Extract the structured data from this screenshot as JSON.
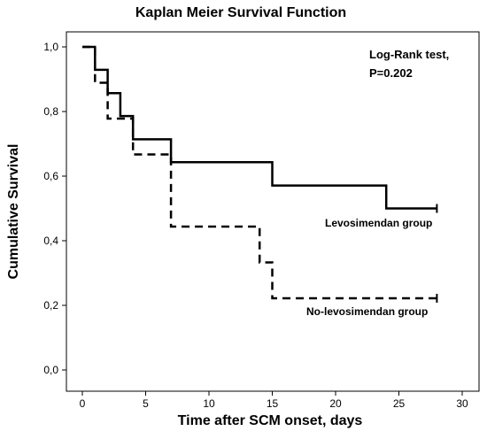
{
  "chart_data": {
    "type": "line",
    "title": "Kaplan Meier Survival Function",
    "xlabel": "Time after SCM onset, days",
    "ylabel": "Cumulative Survival",
    "xlim": [
      0,
      30
    ],
    "ylim": [
      0,
      1
    ],
    "x_ticks": [
      0,
      5,
      10,
      15,
      20,
      25,
      30
    ],
    "x_tick_labels": [
      "0",
      "5",
      "10",
      "15",
      "20",
      "25",
      "30"
    ],
    "y_ticks": [
      0,
      0.2,
      0.4,
      0.6,
      0.8,
      1.0
    ],
    "y_tick_labels": [
      "0,0",
      "0,2",
      "0,4",
      "0,6",
      "0,8",
      "1,0"
    ],
    "grid": false,
    "annotation": [
      "Log-Rank test,",
      "P=0.202"
    ],
    "series": [
      {
        "name": "Levosimendan group",
        "line_style": "solid",
        "color": "#000000",
        "x": [
          0,
          1,
          2,
          3,
          4,
          7,
          15,
          24,
          28
        ],
        "y": [
          1.0,
          0.929,
          0.857,
          0.786,
          0.714,
          0.643,
          0.571,
          0.5,
          0.5
        ],
        "censored": [
          [
            28,
            0.5
          ]
        ]
      },
      {
        "name": "No-levosimendan group",
        "line_style": "dashed",
        "color": "#000000",
        "x": [
          0,
          1,
          2,
          4,
          7,
          14,
          15,
          28
        ],
        "y": [
          1.0,
          0.889,
          0.778,
          0.667,
          0.444,
          0.333,
          0.222,
          0.222
        ],
        "censored": [
          [
            28,
            0.222
          ]
        ]
      }
    ]
  }
}
